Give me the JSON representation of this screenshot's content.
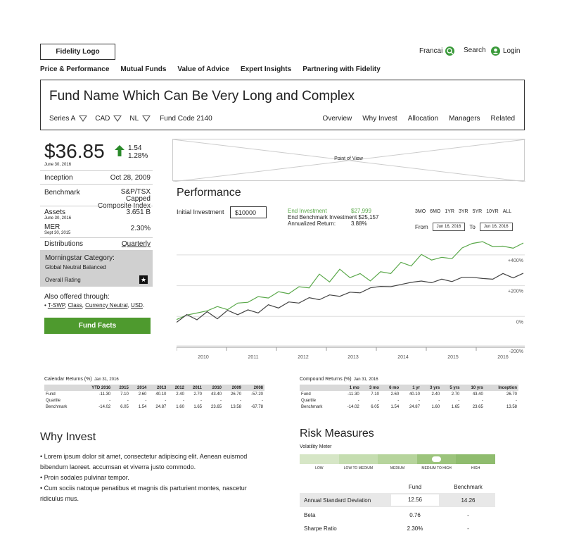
{
  "header": {
    "logo": "Fidelity Logo",
    "lang": "Francai",
    "search": "Search",
    "login": "Login",
    "nav": [
      "Price & Performance",
      "Mutual Funds",
      "Value of Advice",
      "Expert Insights",
      "Partnering with Fidelity"
    ]
  },
  "fund": {
    "title": "Fund Name Which Can Be Very Long and Complex",
    "series": "Series A",
    "currency": "CAD",
    "load": "NL",
    "code": "Fund Code 2140",
    "tabs": [
      "Overview",
      "Why Invest",
      "Allocation",
      "Managers",
      "Related"
    ]
  },
  "summary": {
    "price": "$36.85",
    "price_date": "June 30, 2016",
    "change": "1.54",
    "change_pct": "1.28%",
    "inception_label": "Inception",
    "inception": "Oct 28, 2009",
    "benchmark_label": "Benchmark",
    "benchmark": "S&P/TSX Capped Composite Index",
    "assets_label": "Assets",
    "assets_date": "June 30, 2016",
    "assets": "3.651 B",
    "mer_label": "MER",
    "mer_date": "Sept 30, 2015",
    "mer": "2.30%",
    "distributions_label": "Distributions",
    "distributions": "Quarterly",
    "morningstar_label": "Morningstar Category:",
    "morningstar_category": "Global Neutral Balanced",
    "overall_rating_label": "Overall Rating",
    "also_label": "Also offered through:",
    "also_links": [
      "T-SWP",
      "Class",
      "Currency Neutral",
      "USD"
    ],
    "fund_facts": "Fund Facts"
  },
  "pov": "Point of View",
  "performance": {
    "title": "Performance",
    "init_label": "Initial Investment",
    "init_value": "$10000",
    "end_inv_label": "End Investment",
    "end_inv": "$27,999",
    "end_bench_label": "End Benchmark Investment",
    "end_bench": "$25,157",
    "annual_label": "Annualized Return:",
    "annual": "3.88%",
    "ranges": [
      "3MO",
      "6MO",
      "1YR",
      "3YR",
      "5YR",
      "10YR",
      "ALL"
    ],
    "from_label": "From",
    "from": "Jun 16, 2016",
    "to_label": "To",
    "to": "Jun 16, 2016"
  },
  "chart_data": {
    "type": "line",
    "x_ticks": [
      "2010",
      "2011",
      "2012",
      "2013",
      "2014",
      "2015",
      "2016"
    ],
    "y_ticks": [
      "+400%",
      "+200%",
      "0%",
      "-200%"
    ],
    "series": [
      {
        "color": "#5aa84a",
        "values": [
          -20,
          10,
          20,
          40,
          60,
          50,
          80,
          100,
          120,
          130,
          150,
          160,
          180,
          200,
          260,
          240,
          290,
          270,
          260,
          250,
          270,
          300,
          330,
          350,
          380,
          390,
          360,
          400,
          420,
          500,
          460,
          480,
          430,
          470,
          450
        ]
      },
      {
        "color": "#444444",
        "values": [
          -15,
          -10,
          0,
          10,
          5,
          20,
          30,
          25,
          40,
          60,
          70,
          80,
          100,
          110,
          120,
          130,
          140,
          150,
          160,
          180,
          200,
          190,
          210,
          220,
          230,
          220,
          240,
          230,
          250,
          260,
          240,
          250,
          270,
          260,
          270
        ]
      }
    ]
  },
  "calendar": {
    "title": "Calendar Returns (%)",
    "date": "Jan 31, 2016",
    "headers": [
      "",
      "YTD 2016",
      "2015",
      "2014",
      "2013",
      "2012",
      "2011",
      "2010",
      "2009",
      "2008"
    ],
    "rows": [
      [
        "Fund",
        "-11.30",
        "7.10",
        "2.60",
        "40.10",
        "2.40",
        "2.70",
        "43.40",
        "26.70",
        "-57.20"
      ],
      [
        "Quartile",
        "-",
        "-",
        "-",
        "-",
        "-",
        "-",
        "-",
        "-",
        "-"
      ],
      [
        "Benchmark",
        "-14.02",
        "6.05",
        "1.54",
        "24.87",
        "1.60",
        "1.65",
        "23.65",
        "13.58",
        "-67.78"
      ]
    ]
  },
  "compound": {
    "title": "Compound Returns (%)",
    "date": "Jan 31, 2016",
    "headers": [
      "",
      "1 mo",
      "3 mo",
      "6 mo",
      "1 yr",
      "3 yrs",
      "5 yrs",
      "10 yrs",
      "Inception"
    ],
    "rows": [
      [
        "Fund",
        "-11.30",
        "7.10",
        "2.60",
        "40.10",
        "2.40",
        "2.70",
        "43.40",
        "26.70"
      ],
      [
        "Quartile",
        "-",
        "-",
        "-",
        "-",
        "-",
        "-",
        "-",
        "-"
      ],
      [
        "Benchmark",
        "-14.02",
        "6.05",
        "1.54",
        "24.87",
        "1.60",
        "1.65",
        "23.65",
        "13.58"
      ]
    ]
  },
  "why": {
    "title": "Why Invest",
    "bullets": [
      "• Lorem ipsum dolor sit amet, consectetur adipiscing elit. Aenean euismod bibendum laoreet. accumsan et viverra justo commodo.",
      "• Proin sodales pulvinar tempor.",
      "• Cum sociis natoque penatibus et magnis dis parturient montes, nascetur ridiculus mus."
    ]
  },
  "risk": {
    "title": "Risk Measures",
    "vol_label": "Volatility Meter",
    "levels": [
      "LOW",
      "LOW TO MEDIUM",
      "MEDIUM",
      "MEDIUM TO HIGH",
      "HIGH"
    ],
    "selected_level": "MEDIUM TO HIGH",
    "col_fund": "Fund",
    "col_bench": "Benchmark",
    "rows": [
      [
        "Annual Standard Deviation",
        "12.56",
        "14.26"
      ],
      [
        "Beta",
        "0.76",
        "-"
      ],
      [
        "Sharpe Ratio",
        "2.30%",
        "-"
      ]
    ]
  }
}
